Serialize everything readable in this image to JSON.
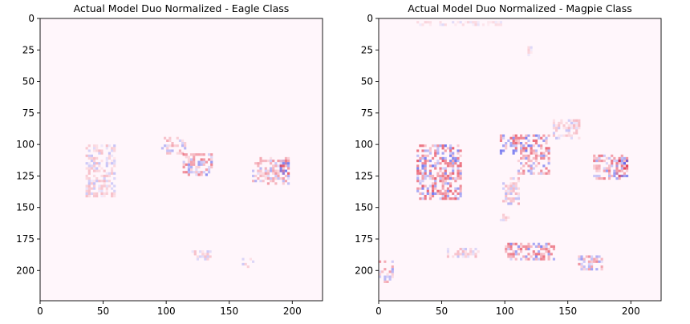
{
  "chart_data": [
    {
      "type": "heatmap",
      "title": "Actual Model Duo Normalized - Eagle Class",
      "xlabel": "",
      "ylabel": "",
      "x_ticks": [
        0,
        50,
        100,
        150,
        200
      ],
      "y_ticks": [
        0,
        25,
        50,
        75,
        100,
        125,
        150,
        175,
        200
      ],
      "xlim": [
        0,
        224
      ],
      "ylim": [
        224,
        0
      ],
      "grid": false,
      "colormap": "bwr",
      "regions": [
        {
          "x": [
            36,
            60
          ],
          "y": [
            100,
            142
          ],
          "intensity": 0.35
        },
        {
          "x": [
            96,
            115
          ],
          "y": [
            94,
            107
          ],
          "intensity": 0.45
        },
        {
          "x": [
            113,
            136
          ],
          "y": [
            107,
            124
          ],
          "intensity": 0.7
        },
        {
          "x": [
            168,
            198
          ],
          "y": [
            110,
            132
          ],
          "intensity": 0.55
        },
        {
          "x": [
            190,
            198
          ],
          "y": [
            112,
            124
          ],
          "intensity": 0.9
        },
        {
          "x": [
            120,
            135
          ],
          "y": [
            184,
            192
          ],
          "intensity": 0.3
        },
        {
          "x": [
            160,
            170
          ],
          "y": [
            190,
            197
          ],
          "intensity": 0.35
        }
      ]
    },
    {
      "type": "heatmap",
      "title": "Actual Model Duo Normalized - Magpie Class",
      "xlabel": "",
      "ylabel": "",
      "x_ticks": [
        0,
        50,
        100,
        150,
        200
      ],
      "y_ticks": [
        0,
        25,
        50,
        75,
        100,
        125,
        150,
        175,
        200
      ],
      "xlim": [
        0,
        224
      ],
      "ylim": [
        224,
        0
      ],
      "grid": false,
      "colormap": "bwr",
      "regions": [
        {
          "x": [
            30,
            66
          ],
          "y": [
            100,
            144
          ],
          "intensity": 0.85
        },
        {
          "x": [
            96,
            135
          ],
          "y": [
            92,
            108
          ],
          "intensity": 0.8
        },
        {
          "x": [
            110,
            136
          ],
          "y": [
            108,
            124
          ],
          "intensity": 0.65
        },
        {
          "x": [
            98,
            112
          ],
          "y": [
            126,
            148
          ],
          "intensity": 0.45
        },
        {
          "x": [
            138,
            160
          ],
          "y": [
            80,
            95
          ],
          "intensity": 0.35
        },
        {
          "x": [
            170,
            198
          ],
          "y": [
            108,
            128
          ],
          "intensity": 0.7
        },
        {
          "x": [
            188,
            198
          ],
          "y": [
            112,
            126
          ],
          "intensity": 1.0
        },
        {
          "x": [
            100,
            140
          ],
          "y": [
            178,
            192
          ],
          "intensity": 0.75
        },
        {
          "x": [
            158,
            178
          ],
          "y": [
            188,
            200
          ],
          "intensity": 0.6
        },
        {
          "x": [
            0,
            12
          ],
          "y": [
            192,
            210
          ],
          "intensity": 0.55
        },
        {
          "x": [
            54,
            80
          ],
          "y": [
            182,
            190
          ],
          "intensity": 0.35
        },
        {
          "x": [
            30,
            100
          ],
          "y": [
            2,
            6
          ],
          "intensity": 0.2
        },
        {
          "x": [
            118,
            122
          ],
          "y": [
            22,
            30
          ],
          "intensity": 0.3
        },
        {
          "x": [
            96,
            104
          ],
          "y": [
            155,
            160
          ],
          "intensity": 0.3
        }
      ]
    }
  ]
}
